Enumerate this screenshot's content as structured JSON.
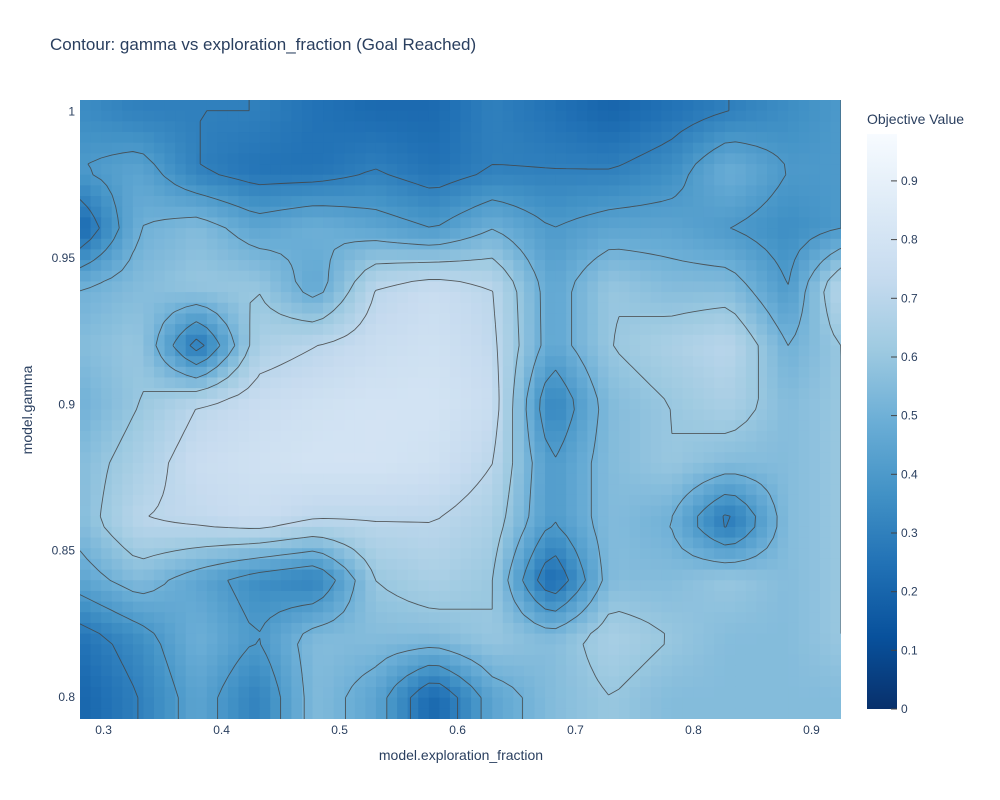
{
  "chart_data": {
    "type": "heatmap",
    "subtype": "contour",
    "title": "Contour: gamma vs exploration_fraction (Goal Reached)",
    "xlabel": "model.exploration_fraction",
    "ylabel": "model.gamma",
    "xlim": [
      0.28,
      0.925
    ],
    "ylim": [
      0.7925,
      1.004
    ],
    "x_ticks": [
      0.3,
      0.4,
      0.5,
      0.6,
      0.7,
      0.8,
      0.9
    ],
    "x_tick_labels": [
      "0.3",
      "0.4",
      "0.5",
      "0.6",
      "0.7",
      "0.8",
      "0.9"
    ],
    "y_ticks": [
      0.8,
      0.85,
      0.9,
      0.95,
      1.0
    ],
    "y_tick_labels": [
      "0.8",
      "0.85",
      "0.9",
      "0.95",
      "1"
    ],
    "colorbar": {
      "title": "Objective Value",
      "range": [
        0,
        0.98
      ],
      "ticks": [
        0,
        0.1,
        0.2,
        0.3,
        0.4,
        0.5,
        0.6,
        0.7,
        0.8,
        0.9
      ],
      "tick_labels": [
        "0",
        "0.1",
        "0.2",
        "0.3",
        "0.4",
        "0.5",
        "0.6",
        "0.7",
        "0.8",
        "0.9"
      ],
      "colorscale": "Blues (reversed)",
      "colors": [
        "#08306b",
        "#08519c",
        "#2171b5",
        "#4292c6",
        "#6baed6",
        "#9ecae1",
        "#c6dbef",
        "#deebf7",
        "#f7fbff"
      ]
    },
    "contour_line_color": "#444444",
    "z_grid": {
      "x": [
        0.28,
        0.33,
        0.38,
        0.43,
        0.48,
        0.53,
        0.58,
        0.63,
        0.68,
        0.73,
        0.78,
        0.83,
        0.88,
        0.925
      ],
      "y": [
        1.0,
        0.98,
        0.96,
        0.94,
        0.92,
        0.9,
        0.88,
        0.86,
        0.84,
        0.82,
        0.8
      ],
      "z": [
        [
          0.35,
          0.3,
          0.3,
          0.3,
          0.25,
          0.22,
          0.22,
          0.3,
          0.25,
          0.2,
          0.25,
          0.3,
          0.35,
          0.4
        ],
        [
          0.4,
          0.45,
          0.3,
          0.25,
          0.25,
          0.3,
          0.25,
          0.3,
          0.3,
          0.3,
          0.35,
          0.5,
          0.4,
          0.4
        ],
        [
          0.2,
          0.5,
          0.55,
          0.45,
          0.5,
          0.45,
          0.4,
          0.5,
          0.4,
          0.45,
          0.45,
          0.4,
          0.35,
          0.4
        ],
        [
          0.5,
          0.55,
          0.6,
          0.6,
          0.45,
          0.7,
          0.75,
          0.7,
          0.45,
          0.6,
          0.55,
          0.55,
          0.4,
          0.7
        ],
        [
          0.55,
          0.6,
          0.25,
          0.65,
          0.7,
          0.75,
          0.78,
          0.72,
          0.45,
          0.6,
          0.65,
          0.7,
          0.5,
          0.6
        ],
        [
          0.5,
          0.6,
          0.7,
          0.75,
          0.78,
          0.8,
          0.8,
          0.75,
          0.3,
          0.55,
          0.6,
          0.65,
          0.55,
          0.6
        ],
        [
          0.55,
          0.65,
          0.75,
          0.78,
          0.8,
          0.8,
          0.78,
          0.7,
          0.4,
          0.55,
          0.6,
          0.55,
          0.55,
          0.6
        ],
        [
          0.55,
          0.7,
          0.72,
          0.75,
          0.7,
          0.7,
          0.7,
          0.65,
          0.4,
          0.55,
          0.5,
          0.25,
          0.55,
          0.6
        ],
        [
          0.45,
          0.55,
          0.45,
          0.35,
          0.3,
          0.6,
          0.65,
          0.6,
          0.2,
          0.55,
          0.55,
          0.6,
          0.55,
          0.6
        ],
        [
          0.25,
          0.35,
          0.5,
          0.4,
          0.55,
          0.55,
          0.55,
          0.6,
          0.55,
          0.65,
          0.6,
          0.55,
          0.55,
          0.6
        ],
        [
          0.2,
          0.3,
          0.45,
          0.3,
          0.55,
          0.45,
          0.2,
          0.45,
          0.55,
          0.6,
          0.55,
          0.55,
          0.55,
          0.55
        ]
      ]
    }
  }
}
